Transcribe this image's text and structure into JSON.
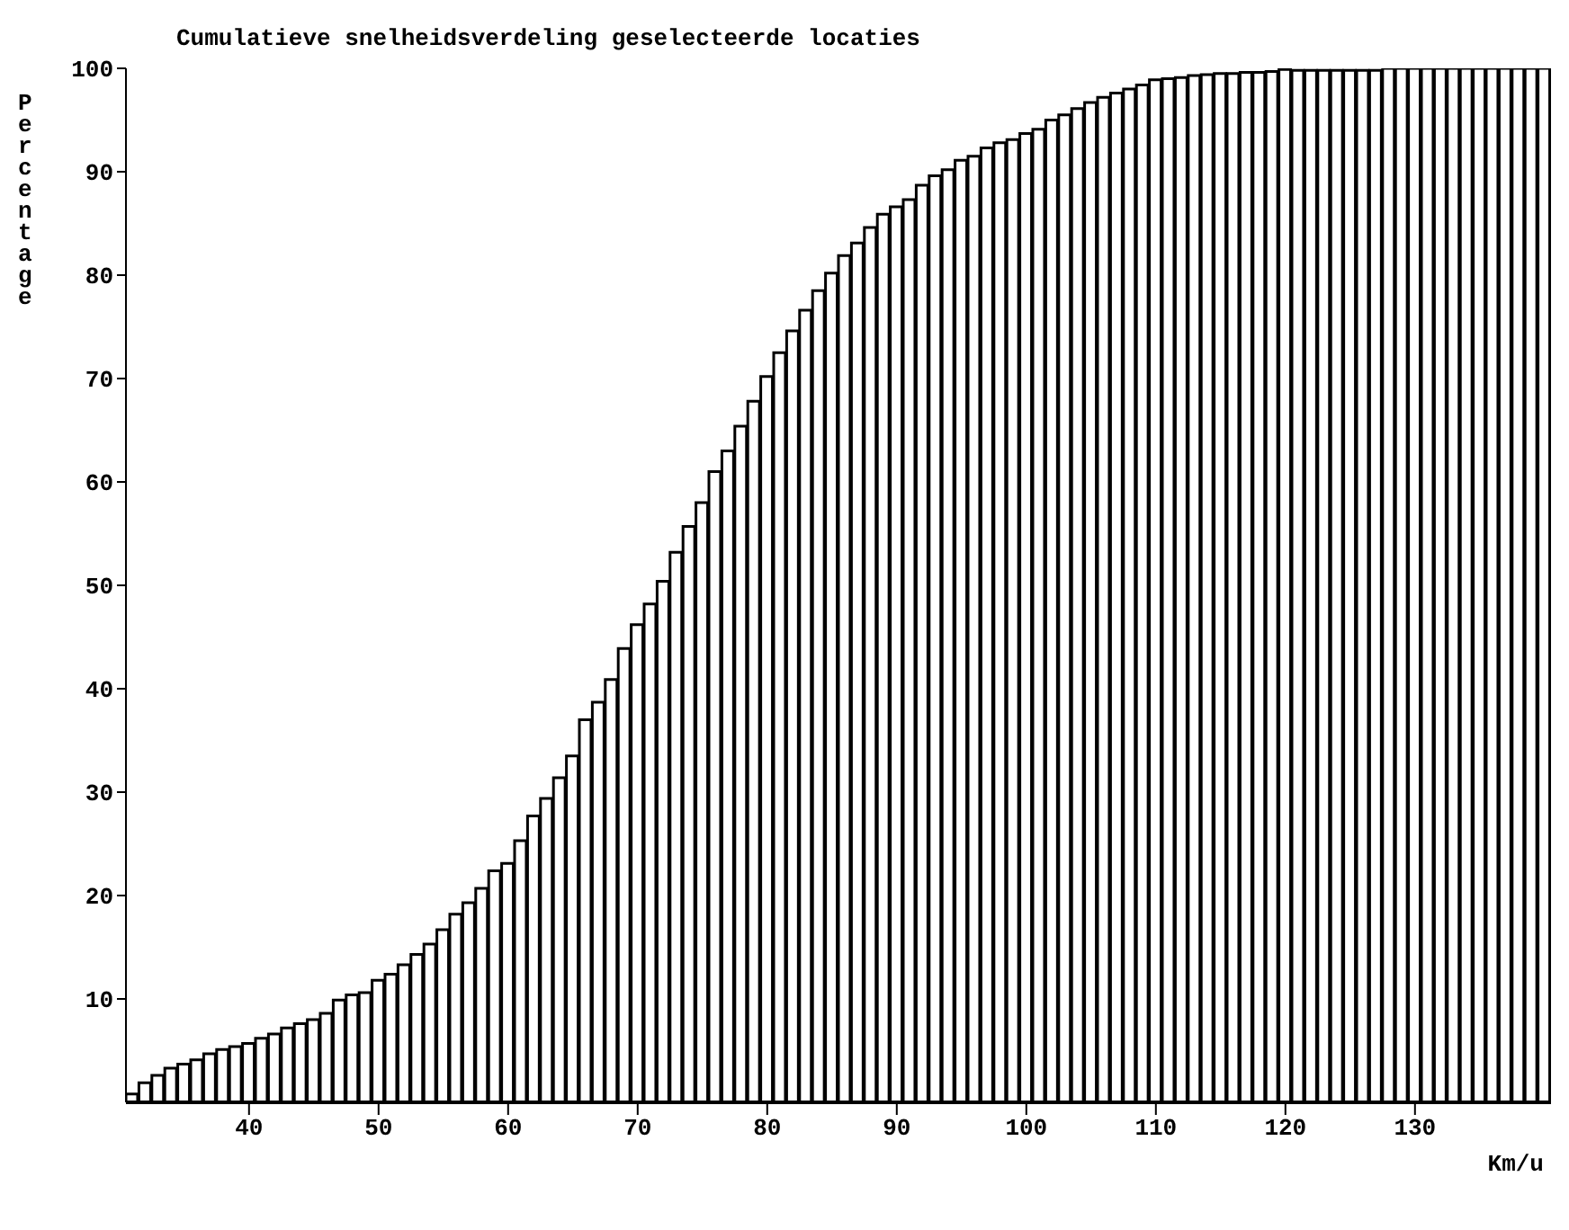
{
  "chart_data": {
    "type": "histogram",
    "title": "Cumulatieve snelheidsverdeling geselecteerde locaties",
    "xlabel": "Km/u",
    "ylabel": "Percentage",
    "bins": [
      30.5,
      31.5,
      32.5,
      33.5,
      34.5,
      35.5,
      36.5,
      37.5,
      38.5,
      39.5,
      40.5,
      41.5,
      42.5,
      43.5,
      44.5,
      45.5,
      46.5,
      47.5,
      48.5,
      49.5,
      50.5,
      51.5,
      52.5,
      53.5,
      54.5,
      55.5,
      56.5,
      57.5,
      58.5,
      59.5,
      60.5,
      61.5,
      62.5,
      63.5,
      64.5,
      65.5,
      66.5,
      67.5,
      68.5,
      69.5,
      70.5,
      71.5,
      72.5,
      73.5,
      74.5,
      75.5,
      76.5,
      77.5,
      78.5,
      79.5,
      80.5,
      81.5,
      82.5,
      83.5,
      84.5,
      85.5,
      86.5,
      87.5,
      88.5,
      89.5,
      90.5,
      91.5,
      92.5,
      93.5,
      94.5,
      95.5,
      96.5,
      97.5,
      98.5,
      99.5,
      100.5,
      101.5,
      102.5,
      103.5,
      104.5,
      105.5,
      106.5,
      107.5,
      108.5,
      109.5,
      110.5,
      111.5,
      112.5,
      113.5,
      114.5,
      115.5,
      116.5,
      117.5,
      118.5,
      119.5,
      120.5,
      121.5,
      122.5,
      123.5,
      124.5,
      125.5,
      126.5,
      127.5,
      128.5,
      129.5,
      130.5,
      131.5,
      132.5,
      133.5,
      134.5,
      135.5,
      136.5,
      137.5,
      138.5,
      139.5,
      140.5
    ],
    "values": [
      0.8,
      1.9,
      2.6,
      3.3,
      3.7,
      4.1,
      4.7,
      5.1,
      5.4,
      5.7,
      6.2,
      6.6,
      7.2,
      7.6,
      8.0,
      8.6,
      9.9,
      10.4,
      10.6,
      11.8,
      12.4,
      13.3,
      14.3,
      15.3,
      16.7,
      18.2,
      19.3,
      20.7,
      22.4,
      23.1,
      25.3,
      27.7,
      29.4,
      31.4,
      33.5,
      37.0,
      38.7,
      40.9,
      43.9,
      46.2,
      48.2,
      50.4,
      53.2,
      55.7,
      58.0,
      61.0,
      63.0,
      65.4,
      67.8,
      70.2,
      72.5,
      74.6,
      76.6,
      78.5,
      80.2,
      81.9,
      83.1,
      84.6,
      85.9,
      86.6,
      87.3,
      88.7,
      89.6,
      90.2,
      91.1,
      91.5,
      92.3,
      92.8,
      93.1,
      93.7,
      94.1,
      95.0,
      95.5,
      96.1,
      96.7,
      97.2,
      97.6,
      98.0,
      98.4,
      98.9,
      99.0,
      99.1,
      99.3,
      99.4,
      99.5,
      99.5,
      99.6,
      99.6,
      99.7,
      99.9,
      99.8,
      99.8,
      99.8,
      99.8,
      99.8,
      99.8,
      99.8,
      100,
      100,
      100,
      100,
      100,
      100,
      100,
      100,
      100,
      100,
      100,
      100,
      100
    ],
    "color": "#ffffff",
    "xlim": [
      30.5,
      140.5
    ],
    "xticks": [
      40,
      50,
      60,
      70,
      80,
      90,
      100,
      110,
      120,
      130
    ],
    "ylim": [
      0,
      100
    ],
    "yticks": [
      10,
      20,
      30,
      40,
      50,
      60,
      70,
      80,
      90,
      100
    ],
    "grid": false,
    "legend": false
  }
}
